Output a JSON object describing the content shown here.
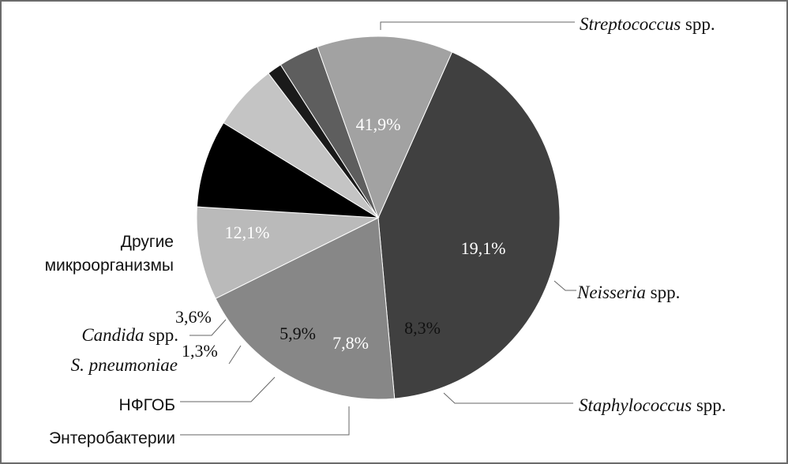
{
  "chart_data": {
    "type": "pie",
    "title": "",
    "slices": [
      {
        "category": "Streptococcus",
        "suffix": " spp.",
        "italic": true,
        "value": 41.9,
        "label": "41,9%",
        "color": "#404040",
        "text_color": "#ffffff"
      },
      {
        "category": "Neisseria",
        "suffix": " spp.",
        "italic": true,
        "value": 19.1,
        "label": "19,1%",
        "color": "#878787",
        "text_color": "#ffffff"
      },
      {
        "category": "Staphylococcus",
        "suffix": " spp.",
        "italic": true,
        "value": 8.3,
        "label": "8,3%",
        "color": "#bababa",
        "text_color": "#111111"
      },
      {
        "category": "Энтеробактерии",
        "suffix": "",
        "italic": false,
        "value": 7.8,
        "label": "7,8%",
        "color": "#000000",
        "text_color": "#ffffff"
      },
      {
        "category": "НФГОБ",
        "suffix": "",
        "italic": false,
        "value": 5.9,
        "label": "5,9%",
        "color": "#c4c4c4",
        "text_color": "#111111"
      },
      {
        "category": "S. pneumoniae",
        "suffix": "",
        "italic": true,
        "value": 1.3,
        "label": "1,3%",
        "color": "#1a1a1a",
        "text_color": "#111111"
      },
      {
        "category": "Candida",
        "suffix": " spp.",
        "italic": true,
        "value": 3.6,
        "label": "3,6%",
        "color": "#5e5e5e",
        "text_color": "#111111"
      },
      {
        "category": "Другие микроорганизмы",
        "lines": [
          "Другие",
          "микроорганизмы"
        ],
        "suffix": "",
        "italic": false,
        "value": 12.1,
        "label": "12,1%",
        "color": "#a2a2a2",
        "text_color": "#ffffff"
      }
    ]
  }
}
